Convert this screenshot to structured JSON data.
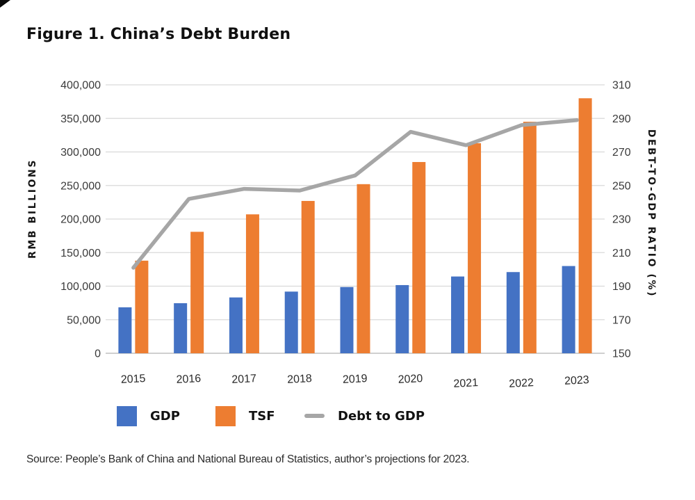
{
  "figure": {
    "title": "Figure 1. China’s Debt Burden",
    "source": "Source: People’s Bank of China and National Bureau of Statistics, author’s projections for 2023."
  },
  "legend": {
    "gdp": "GDP",
    "tsf": "TSF",
    "debt_to_gdp": "Debt to GDP"
  },
  "colors": {
    "gdp_bar": "#4472C4",
    "tsf_bar": "#ED7D31",
    "debt_line": "#A6A6A6",
    "gridline": "#D9D9D9",
    "baseline": "#BFBFBF",
    "tick_text": "#3A3A3A",
    "year_text": "#2B2B2B"
  },
  "chart_data": {
    "type": "bar",
    "subtype": "grouped bars with secondary-axis line",
    "title": "Figure 1. China's Debt Burden",
    "categories": [
      "2015",
      "2016",
      "2017",
      "2018",
      "2019",
      "2020",
      "2021",
      "2022",
      "2023"
    ],
    "series": [
      {
        "name": "GDP",
        "type": "bar",
        "axis": "left",
        "color": "#4472C4",
        "values": [
          68500,
          74600,
          83200,
          91900,
          98700,
          101600,
          114400,
          121000,
          130000
        ]
      },
      {
        "name": "TSF",
        "type": "bar",
        "axis": "left",
        "color": "#ED7D31",
        "values": [
          138000,
          181000,
          207000,
          227000,
          252000,
          285000,
          313000,
          345000,
          380000
        ]
      },
      {
        "name": "Debt to GDP",
        "type": "line",
        "axis": "right",
        "color": "#A6A6A6",
        "values": [
          201,
          242,
          248,
          247,
          256,
          282,
          274,
          286,
          289
        ]
      }
    ],
    "left_axis": {
      "label": "RMB BILLIONS",
      "range": [
        0,
        400000
      ],
      "ticks": [
        "400,000",
        "350,000",
        "300,000",
        "250,000",
        "200,000",
        "150,000",
        "100,000",
        "50,000",
        "0"
      ]
    },
    "right_axis": {
      "label": "DEBT-TO-GDP RATIO (%)",
      "range": [
        150,
        310
      ],
      "ticks": [
        "310",
        "290",
        "270",
        "250",
        "230",
        "210",
        "190",
        "170",
        "150"
      ]
    },
    "grid": true,
    "legend_position": "bottom"
  }
}
